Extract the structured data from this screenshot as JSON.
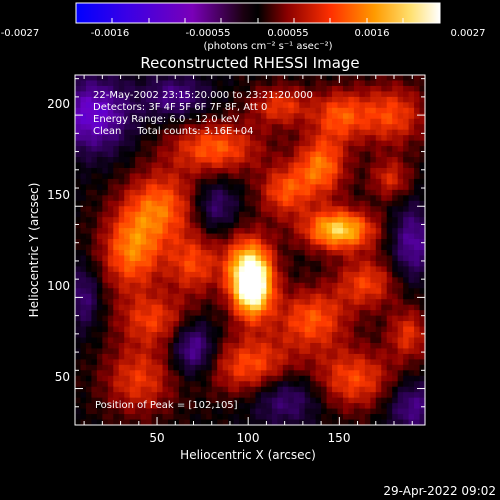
{
  "colorbar": {
    "tick_labels": [
      "-0.0027",
      "-0.0016",
      "-0.00055",
      "0.00055",
      "0.0016",
      "0.0027"
    ],
    "unit_label": "(photons cm⁻² s⁻¹ asec⁻²)",
    "range": [
      -0.0027,
      0.0027
    ]
  },
  "chart_data": {
    "type": "heatmap",
    "title": "Reconstructed RHESSI Image",
    "xlabel": "Heliocentric X (arcsec)",
    "ylabel": "Heliocentric Y (arcsec)",
    "xlim": [
      5,
      197
    ],
    "ylim": [
      30,
      222
    ],
    "x_ticks": [
      "50",
      "100",
      "150"
    ],
    "y_ticks": [
      "50",
      "100",
      "150",
      "200"
    ],
    "annotations": [
      "22-May-2002 23:15:20.000 to 23:21:20.000",
      "Detectors: 3F 4F 5F 6F 7F 8F, Att 0",
      "Energy Range: 6.0 - 12.0 keV",
      "Clean     Total counts: 3.16E+04"
    ],
    "peak_label": "Position of Peak = [102,105]",
    "peak": [
      102,
      105
    ],
    "grid": false,
    "colormap": [
      "#0000ff",
      "#6a00c8",
      "#000000",
      "#8a0000",
      "#ff3a00",
      "#ffaa00",
      "#ffffa0",
      "#ffffff"
    ],
    "blobs": [
      {
        "x": 102,
        "y": 105,
        "sx": 8,
        "sy": 12,
        "a": 1.0
      },
      {
        "x": 100,
        "y": 120,
        "sx": 10,
        "sy": 12,
        "a": 0.5
      },
      {
        "x": 150,
        "y": 137,
        "sx": 14,
        "sy": 8,
        "a": 0.78
      },
      {
        "x": 140,
        "y": 172,
        "sx": 10,
        "sy": 12,
        "a": 0.55
      },
      {
        "x": 120,
        "y": 158,
        "sx": 10,
        "sy": 10,
        "a": 0.45
      },
      {
        "x": 82,
        "y": 182,
        "sx": 18,
        "sy": 10,
        "a": 0.5
      },
      {
        "x": 52,
        "y": 150,
        "sx": 14,
        "sy": 14,
        "a": 0.5
      },
      {
        "x": 36,
        "y": 125,
        "sx": 12,
        "sy": 16,
        "a": 0.55
      },
      {
        "x": 70,
        "y": 118,
        "sx": 10,
        "sy": 12,
        "a": 0.42
      },
      {
        "x": 48,
        "y": 88,
        "sx": 14,
        "sy": 10,
        "a": 0.38
      },
      {
        "x": 135,
        "y": 88,
        "sx": 14,
        "sy": 12,
        "a": 0.48
      },
      {
        "x": 165,
        "y": 108,
        "sx": 12,
        "sy": 10,
        "a": 0.42
      },
      {
        "x": 178,
        "y": 200,
        "sx": 14,
        "sy": 12,
        "a": 0.45
      },
      {
        "x": 150,
        "y": 200,
        "sx": 10,
        "sy": 10,
        "a": 0.42
      },
      {
        "x": 158,
        "y": 55,
        "sx": 16,
        "sy": 12,
        "a": 0.45
      },
      {
        "x": 102,
        "y": 62,
        "sx": 16,
        "sy": 12,
        "a": 0.48
      },
      {
        "x": 40,
        "y": 55,
        "sx": 14,
        "sy": 14,
        "a": 0.4
      },
      {
        "x": 188,
        "y": 80,
        "sx": 8,
        "sy": 10,
        "a": 0.38
      },
      {
        "x": 178,
        "y": 165,
        "sx": 8,
        "sy": 8,
        "a": 0.35
      },
      {
        "x": 118,
        "y": 205,
        "sx": 12,
        "sy": 8,
        "a": 0.4
      },
      {
        "x": 15,
        "y": 200,
        "sx": 14,
        "sy": 14,
        "a": -0.55
      },
      {
        "x": 60,
        "y": 210,
        "sx": 12,
        "sy": 8,
        "a": -0.35
      },
      {
        "x": 70,
        "y": 72,
        "sx": 8,
        "sy": 10,
        "a": -0.45
      },
      {
        "x": 120,
        "y": 45,
        "sx": 14,
        "sy": 10,
        "a": -0.35
      },
      {
        "x": 190,
        "y": 130,
        "sx": 8,
        "sy": 14,
        "a": -0.4
      },
      {
        "x": 10,
        "y": 100,
        "sx": 6,
        "sy": 12,
        "a": -0.3
      },
      {
        "x": 82,
        "y": 150,
        "sx": 8,
        "sy": 10,
        "a": -0.3
      },
      {
        "x": 190,
        "y": 40,
        "sx": 10,
        "sy": 10,
        "a": -0.35
      }
    ]
  },
  "footer": {
    "timestamp": "29-Apr-2022 09:02"
  }
}
